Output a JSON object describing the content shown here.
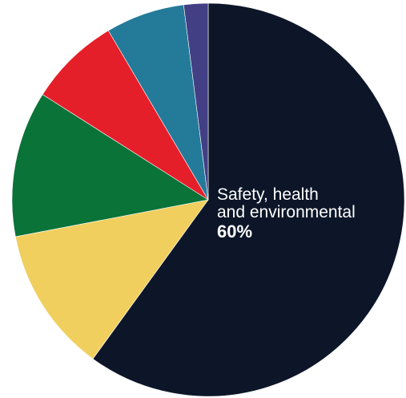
{
  "chart_data": {
    "type": "pie",
    "start_angle": "top",
    "direction": "clockwise",
    "slices": [
      {
        "label": "Safety, health and environmental",
        "value": 60,
        "value_label": "60%",
        "color": "#0c1628"
      },
      {
        "label": "",
        "value": 12,
        "color": "#f0cf5f"
      },
      {
        "label": "",
        "value": 12,
        "color": "#097338"
      },
      {
        "label": "",
        "value": 7.5,
        "color": "#e51f2a"
      },
      {
        "label": "",
        "value": 6.5,
        "color": "#247a99"
      },
      {
        "label": "",
        "value": 2,
        "color": "#433f85"
      }
    ],
    "annotation": {
      "line1": "Safety, health",
      "line2": "and environmental",
      "value": "60%"
    }
  }
}
